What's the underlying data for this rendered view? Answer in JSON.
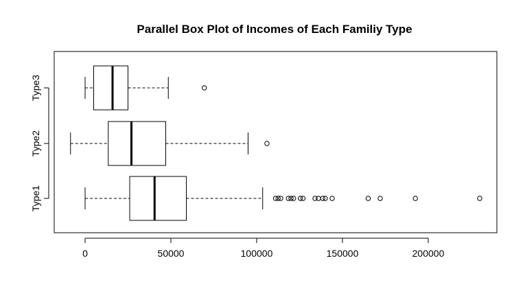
{
  "chart_data": {
    "type": "boxplot",
    "orientation": "horizontal",
    "title": "Parallel Box Plot of Incomes of Each Familiy Type",
    "xlabel": "",
    "ylabel": "",
    "xlim": [
      -10000,
      240000
    ],
    "x_ticks": [
      0,
      50000,
      100000,
      150000,
      200000
    ],
    "x_tick_labels": [
      "0",
      "50000",
      "100000",
      "150000",
      "200000"
    ],
    "series": [
      {
        "category": "Type1",
        "whisker_low": 0,
        "q1": 26000,
        "median": 40500,
        "q3": 59000,
        "whisker_high": 103500,
        "outliers": [
          111000,
          112500,
          114000,
          118500,
          120000,
          121500,
          125500,
          127000,
          134000,
          136000,
          138500,
          140000,
          144000,
          165000,
          172000,
          192500,
          230000
        ]
      },
      {
        "category": "Type2",
        "whisker_low": -8500,
        "q1": 13500,
        "median": 27000,
        "q3": 47000,
        "whisker_high": 95000,
        "outliers": [
          106000
        ]
      },
      {
        "category": "Type3",
        "whisker_low": 0,
        "q1": 5000,
        "median": 16000,
        "q3": 25000,
        "whisker_high": 48500,
        "outliers": [
          69500
        ]
      }
    ]
  }
}
